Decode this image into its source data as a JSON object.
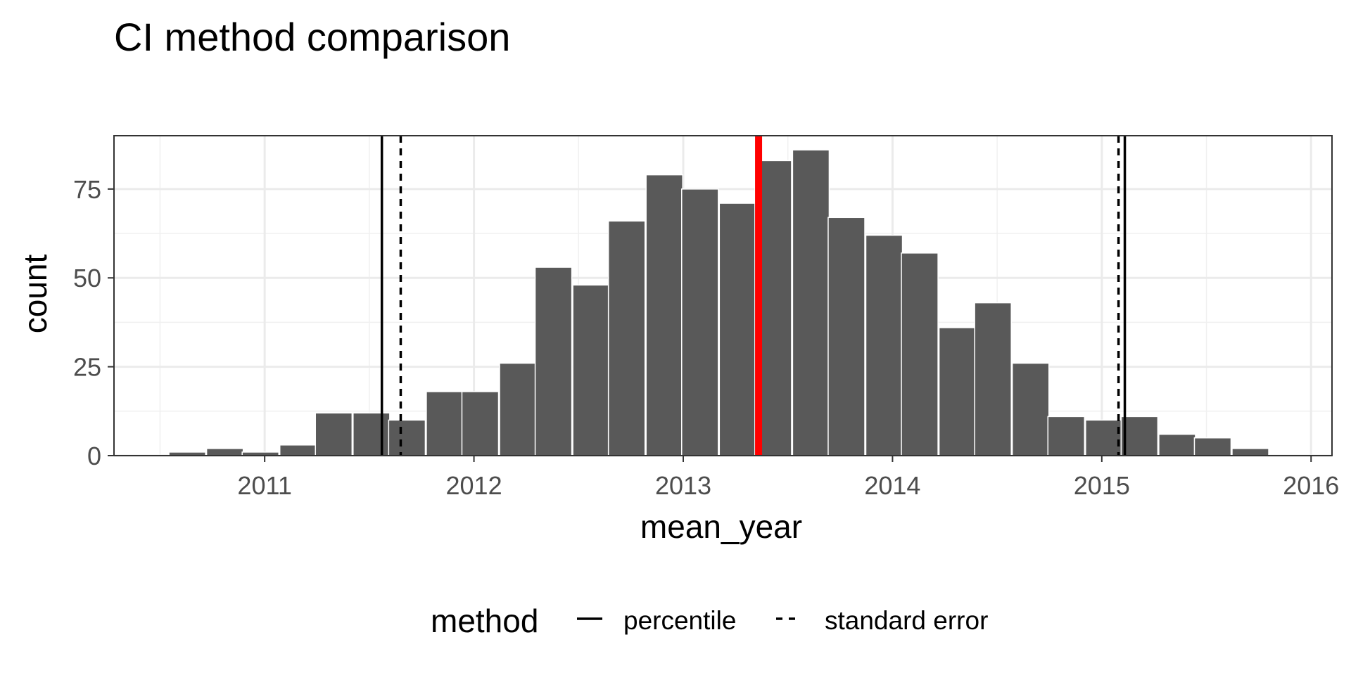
{
  "chart_data": {
    "type": "bar",
    "title": "CI method comparison",
    "xlabel": "mean_year",
    "ylabel": "count",
    "xlim": [
      2010.28,
      2016.1
    ],
    "ylim": [
      0,
      90
    ],
    "x_ticks": [
      2011,
      2012,
      2013,
      2014,
      2015,
      2016
    ],
    "y_ticks": [
      0,
      25,
      50,
      75
    ],
    "bin_width": 0.175,
    "bins": [
      {
        "x": 2010.63,
        "count": 1
      },
      {
        "x": 2010.81,
        "count": 2
      },
      {
        "x": 2010.98,
        "count": 1
      },
      {
        "x": 2011.16,
        "count": 3
      },
      {
        "x": 2011.33,
        "count": 12
      },
      {
        "x": 2011.51,
        "count": 12
      },
      {
        "x": 2011.68,
        "count": 10
      },
      {
        "x": 2011.86,
        "count": 18
      },
      {
        "x": 2012.03,
        "count": 18
      },
      {
        "x": 2012.21,
        "count": 26
      },
      {
        "x": 2012.38,
        "count": 53
      },
      {
        "x": 2012.56,
        "count": 48
      },
      {
        "x": 2012.73,
        "count": 66
      },
      {
        "x": 2012.91,
        "count": 79
      },
      {
        "x": 2013.08,
        "count": 75
      },
      {
        "x": 2013.26,
        "count": 71
      },
      {
        "x": 2013.43,
        "count": 83
      },
      {
        "x": 2013.61,
        "count": 86
      },
      {
        "x": 2013.78,
        "count": 67
      },
      {
        "x": 2013.96,
        "count": 62
      },
      {
        "x": 2014.13,
        "count": 57
      },
      {
        "x": 2014.31,
        "count": 36
      },
      {
        "x": 2014.48,
        "count": 43
      },
      {
        "x": 2014.66,
        "count": 26
      },
      {
        "x": 2014.83,
        "count": 11
      },
      {
        "x": 2015.01,
        "count": 10
      },
      {
        "x": 2015.18,
        "count": 11
      },
      {
        "x": 2015.36,
        "count": 6
      },
      {
        "x": 2015.53,
        "count": 5
      },
      {
        "x": 2015.71,
        "count": 2
      }
    ],
    "mean_line": {
      "x": 2013.36,
      "color": "#ff0000"
    },
    "ci_lines": [
      {
        "method": "percentile",
        "lower": 2011.56,
        "upper": 2015.11,
        "linetype": "solid"
      },
      {
        "method": "standard error",
        "lower": 2011.65,
        "upper": 2015.08,
        "linetype": "dashed"
      }
    ],
    "legend": {
      "title": "method",
      "position": "bottom",
      "entries": [
        {
          "label": "percentile",
          "linetype": "solid"
        },
        {
          "label": "standard error",
          "linetype": "dashed"
        }
      ]
    },
    "bar_color": "#595959",
    "grid": true
  }
}
